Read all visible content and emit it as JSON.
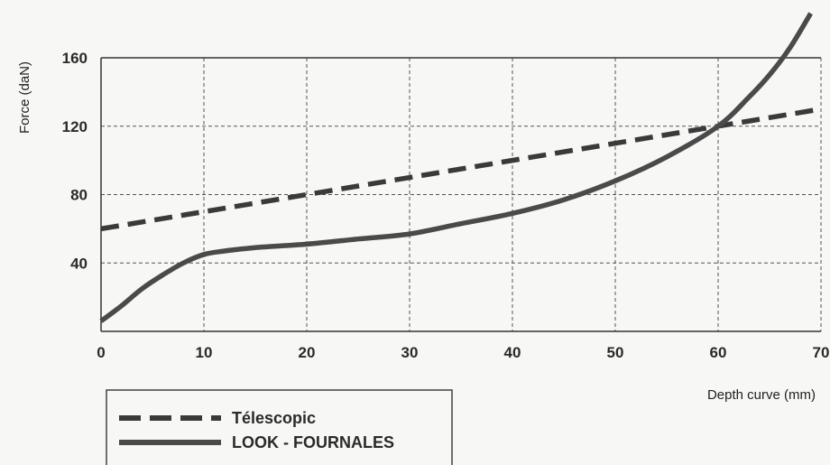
{
  "chart_data": {
    "type": "line",
    "xlabel": "Depth curve (mm)",
    "ylabel": "Force (daN)",
    "xlim": [
      0,
      70
    ],
    "ylim": [
      0,
      160
    ],
    "x_ticks": [
      0,
      10,
      20,
      30,
      40,
      50,
      60,
      70
    ],
    "y_ticks": [
      40,
      80,
      120,
      160
    ],
    "grid": true,
    "legend_position": "bottom-left",
    "series": [
      {
        "name": "Télescopic",
        "style": "dashed",
        "color": "#3a3a3a",
        "x": [
          0,
          70
        ],
        "y": [
          60,
          130
        ]
      },
      {
        "name": "LOOK - FOURNALES",
        "style": "solid",
        "color": "#4a4a4a",
        "x": [
          0,
          2,
          4,
          6,
          8,
          10,
          12,
          15,
          20,
          25,
          30,
          35,
          40,
          45,
          50,
          55,
          60,
          63,
          65,
          67,
          69
        ],
        "y": [
          6,
          15,
          25,
          33,
          40,
          45,
          47,
          49,
          51,
          54,
          57,
          63,
          69,
          77,
          88,
          102,
          120,
          137,
          150,
          166,
          186
        ]
      }
    ]
  }
}
